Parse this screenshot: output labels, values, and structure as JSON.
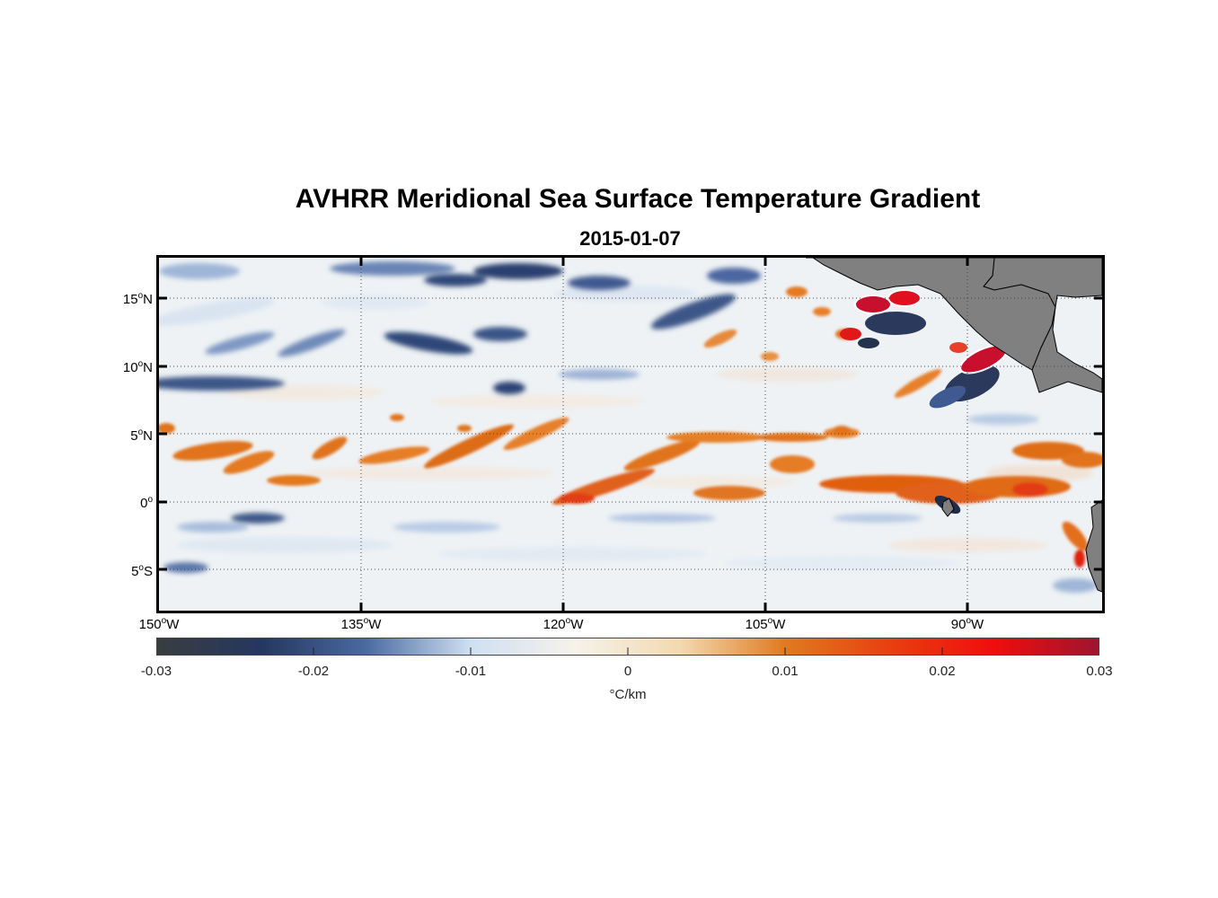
{
  "title": "AVHRR Meridional Sea Surface Temperature Gradient",
  "subtitle": "2015-01-07",
  "lat_labels": [
    {
      "num": "15",
      "deg": "o",
      "hem": "N"
    },
    {
      "num": "10",
      "deg": "o",
      "hem": "N"
    },
    {
      "num": "5",
      "deg": "o",
      "hem": "N"
    },
    {
      "num": "0",
      "deg": "o",
      "hem": ""
    },
    {
      "num": "5",
      "deg": "o",
      "hem": "S"
    }
  ],
  "lon_labels": [
    {
      "num": "150",
      "deg": "o",
      "hem": "W"
    },
    {
      "num": "135",
      "deg": "o",
      "hem": "W"
    },
    {
      "num": "120",
      "deg": "o",
      "hem": "W"
    },
    {
      "num": "105",
      "deg": "o",
      "hem": "W"
    },
    {
      "num": "90",
      "deg": "o",
      "hem": "W"
    }
  ],
  "colorbar": {
    "ticks": [
      "-0.03",
      "-0.02",
      "-0.01",
      "0",
      "0.01",
      "0.02",
      "0.03"
    ],
    "range": [
      -0.03,
      0.03
    ],
    "unit": "°C/km",
    "colors": [
      "#3a3d40",
      "#243760",
      "#4a6aa0",
      "#cfe0f2",
      "#f6f2ea",
      "#f3d9b0",
      "#e07a20",
      "#e8400f",
      "#f00d0d",
      "#9e1530"
    ]
  },
  "map": {
    "extent": {
      "lon": [
        -150,
        -80
      ],
      "lat": [
        -8,
        18
      ]
    },
    "land_color": "#808080",
    "ocean_base_color": "#eef2f5"
  }
}
